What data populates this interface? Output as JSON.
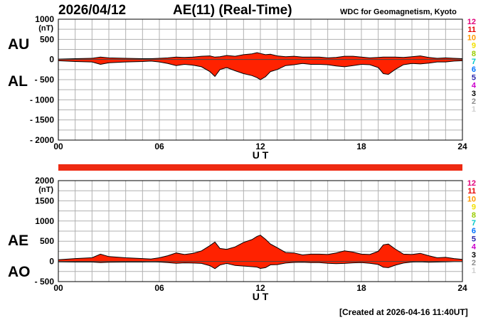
{
  "header": {
    "date": "2026/04/12",
    "title": "AE(11) (Real-Time)",
    "source": "WDC for Geomagnetism, Kyoto"
  },
  "footer": {
    "created": "[Created at 2026-04-16 11:40UT]"
  },
  "colors": {
    "fill": "#ff2200",
    "outline": "#000000",
    "grid": "#b0b0b0",
    "station_bar": "#ee2a12"
  },
  "stations": [
    {
      "label": "12",
      "color": "#e2007a"
    },
    {
      "label": "11",
      "color": "#e60000"
    },
    {
      "label": "10",
      "color": "#ff9900"
    },
    {
      "label": "9",
      "color": "#f2e000"
    },
    {
      "label": "8",
      "color": "#99cc00"
    },
    {
      "label": "7",
      "color": "#00c8c8"
    },
    {
      "label": "6",
      "color": "#0072ff"
    },
    {
      "label": "5",
      "color": "#2a24aa"
    },
    {
      "label": "4",
      "color": "#cc00cc"
    },
    {
      "label": "3",
      "color": "#000000"
    },
    {
      "label": "2",
      "color": "#8c8c8c"
    },
    {
      "label": "1",
      "color": "#d0d0d0"
    }
  ],
  "chart_data": [
    {
      "type": "area",
      "labels": [
        "AU",
        "AL"
      ],
      "unit": "(nT)",
      "xlabel": "U T",
      "xlim": [
        0,
        24
      ],
      "xticks": [
        "00",
        "06",
        "12",
        "18",
        "24"
      ],
      "ylim": [
        -2000,
        1000
      ],
      "yticks": [
        "1000",
        "500",
        "0",
        "- 500",
        "- 1000",
        "- 1500",
        "- 2000"
      ],
      "grid": true,
      "x": [
        0,
        1,
        2,
        2.5,
        3,
        4,
        5,
        5.5,
        6,
        6.5,
        7,
        7.5,
        8,
        8.5,
        9,
        9.3,
        9.6,
        10,
        10.5,
        11,
        11.5,
        11.8,
        12,
        12.3,
        12.6,
        13,
        13.5,
        14,
        14.5,
        15,
        15.5,
        16,
        16.5,
        17,
        17.5,
        18,
        18.5,
        19,
        19.3,
        19.6,
        20,
        20.5,
        21,
        21.5,
        22,
        22.5,
        23,
        23.5,
        24
      ],
      "series": [
        {
          "name": "AU",
          "values": [
            10,
            20,
            30,
            60,
            40,
            30,
            20,
            20,
            30,
            40,
            60,
            50,
            60,
            80,
            90,
            60,
            70,
            100,
            80,
            120,
            140,
            170,
            150,
            120,
            130,
            90,
            70,
            80,
            60,
            60,
            60,
            40,
            50,
            80,
            80,
            60,
            40,
            50,
            60,
            60,
            60,
            50,
            70,
            90,
            50,
            30,
            40,
            30,
            20
          ]
        },
        {
          "name": "AL",
          "values": [
            -30,
            -50,
            -60,
            -120,
            -80,
            -60,
            -50,
            -40,
            -60,
            -100,
            -150,
            -120,
            -140,
            -180,
            -300,
            -420,
            -250,
            -200,
            -280,
            -350,
            -400,
            -450,
            -500,
            -430,
            -300,
            -250,
            -150,
            -130,
            -100,
            -120,
            -120,
            -130,
            -160,
            -180,
            -150,
            -120,
            -130,
            -200,
            -350,
            -370,
            -250,
            -130,
            -100,
            -110,
            -90,
            -60,
            -60,
            -40,
            -30
          ]
        }
      ]
    },
    {
      "type": "area",
      "labels": [
        "AE",
        "AO"
      ],
      "unit": "(nT)",
      "xlabel": "U T",
      "xlim": [
        0,
        24
      ],
      "xticks": [
        "00",
        "06",
        "12",
        "18",
        "24"
      ],
      "ylim": [
        -500,
        2000
      ],
      "yticks": [
        "2000",
        "1500",
        "1000",
        "500",
        "0",
        "- 500"
      ],
      "grid": true,
      "x": [
        0,
        1,
        2,
        2.5,
        3,
        4,
        5,
        5.5,
        6,
        6.5,
        7,
        7.5,
        8,
        8.5,
        9,
        9.3,
        9.6,
        10,
        10.5,
        11,
        11.5,
        11.8,
        12,
        12.3,
        12.6,
        13,
        13.5,
        14,
        14.5,
        15,
        15.5,
        16,
        16.5,
        17,
        17.5,
        18,
        18.5,
        19,
        19.3,
        19.6,
        20,
        20.5,
        21,
        21.5,
        22,
        22.5,
        23,
        23.5,
        24
      ],
      "series": [
        {
          "name": "AE",
          "values": [
            40,
            70,
            90,
            180,
            120,
            90,
            70,
            60,
            90,
            140,
            210,
            170,
            200,
            260,
            390,
            480,
            320,
            300,
            360,
            470,
            540,
            620,
            650,
            550,
            430,
            340,
            220,
            210,
            160,
            180,
            180,
            170,
            210,
            260,
            230,
            180,
            170,
            250,
            410,
            430,
            310,
            180,
            170,
            200,
            140,
            90,
            100,
            70,
            50
          ]
        },
        {
          "name": "AO",
          "values": [
            -10,
            -15,
            -15,
            -30,
            -20,
            -15,
            -15,
            -10,
            -15,
            -30,
            -45,
            -35,
            -40,
            -50,
            -105,
            -180,
            -90,
            -50,
            -100,
            -115,
            -130,
            -140,
            -175,
            -155,
            -85,
            -80,
            -40,
            -25,
            -20,
            -30,
            -30,
            -45,
            -55,
            -50,
            -35,
            -30,
            -45,
            -75,
            -145,
            -155,
            -95,
            -40,
            -15,
            -10,
            -20,
            -15,
            -10,
            -5,
            -5
          ]
        }
      ]
    }
  ]
}
